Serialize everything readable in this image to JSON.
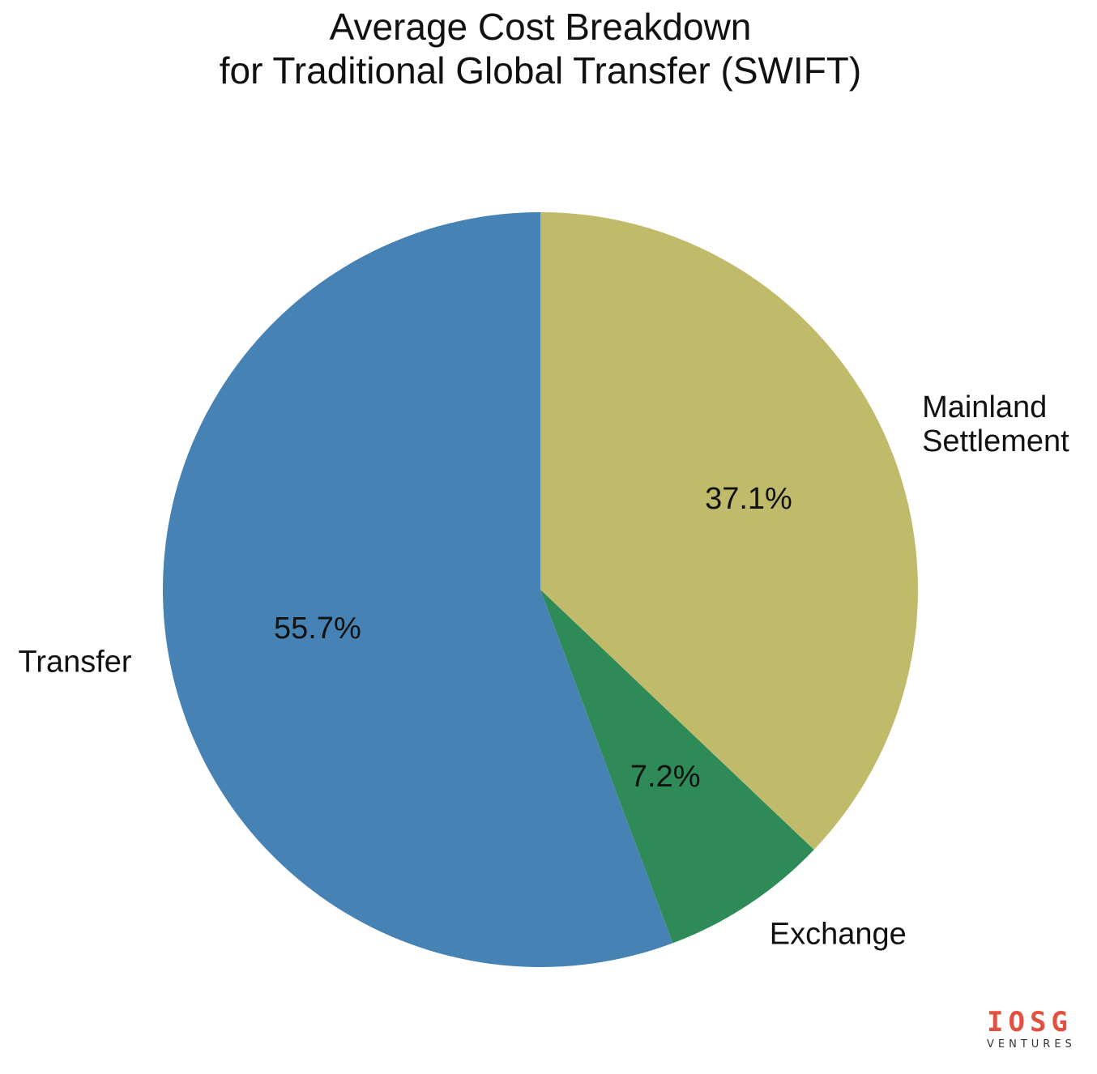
{
  "chart_data": {
    "type": "pie",
    "title": [
      "Average Cost Breakdown",
      "for Traditional Global Transfer (SWIFT)"
    ],
    "slices": [
      {
        "label": "Mainland Settlement",
        "label_lines": [
          "Mainland",
          "Settlement"
        ],
        "value": 37.1,
        "pct_text": "37.1%",
        "color": "#bfbb6a"
      },
      {
        "label": "Exchange",
        "label_lines": [
          "Exchange"
        ],
        "value": 7.2,
        "pct_text": "7.2%",
        "color": "#2e8b57"
      },
      {
        "label": "Transfer",
        "label_lines": [
          "Transfer"
        ],
        "value": 55.7,
        "pct_text": "55.7%",
        "color": "#4682b4"
      }
    ],
    "start_angle": "12 o'clock",
    "direction": "clockwise",
    "legend": "none"
  },
  "watermark": {
    "mark": "IOSG",
    "sub": "VENTURES"
  }
}
